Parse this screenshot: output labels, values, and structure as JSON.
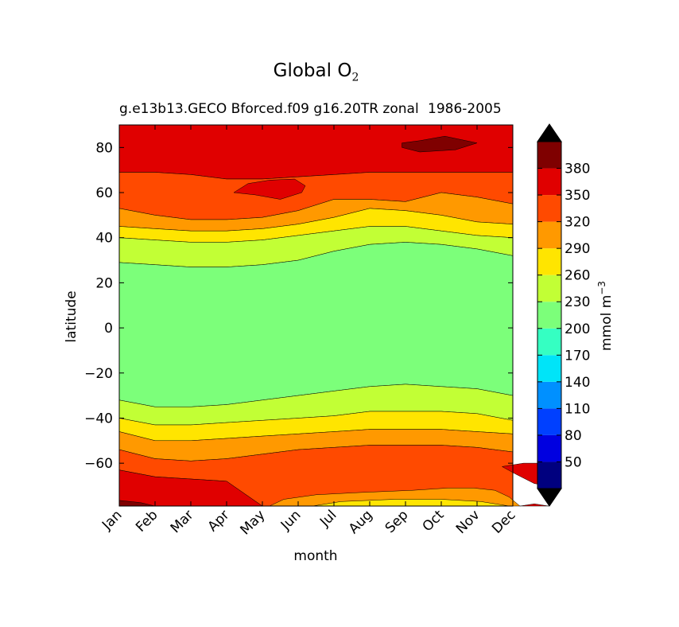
{
  "chart_data": {
    "type": "contourf",
    "title": "Global O",
    "title_subscript": "2",
    "subtitle": "g.e13b13.GECO Bforced.f09 g16.20TR zonal",
    "subtitle_years": "1986-2005",
    "xlabel": "month",
    "ylabel": "latitude",
    "x_categories": [
      "Jan",
      "Feb",
      "Mar",
      "Apr",
      "May",
      "Jun",
      "Jul",
      "Aug",
      "Sep",
      "Oct",
      "Nov",
      "Dec"
    ],
    "y_ticks": [
      80,
      60,
      40,
      20,
      0,
      -20,
      -40,
      -60
    ],
    "ylim": [
      -79,
      90
    ],
    "colorbar": {
      "label": "mmol m",
      "label_sup": "−3",
      "ticks": [
        50,
        80,
        110,
        140,
        170,
        200,
        230,
        260,
        290,
        320,
        350,
        380
      ],
      "levels": [
        20,
        50,
        80,
        110,
        140,
        170,
        200,
        230,
        260,
        290,
        320,
        350,
        380,
        410
      ],
      "colors": [
        "#00007f",
        "#0000e0",
        "#0040ff",
        "#0090ff",
        "#00e4f8",
        "#35ffc2",
        "#7cff7a",
        "#c2ff35",
        "#ffe500",
        "#ff9900",
        "#ff4a00",
        "#e00000",
        "#7f0000"
      ],
      "extend_min_color": "#000000",
      "extend_max_color": "#000000"
    },
    "bands": [
      {
        "level": "350-380",
        "upper": [
          90,
          90,
          90,
          90,
          90,
          90,
          90,
          90,
          90,
          90,
          90,
          90
        ],
        "lower": [
          69,
          69,
          68,
          66,
          66,
          67,
          68,
          69,
          69,
          69,
          69,
          69
        ],
        "color": "#e00000"
      },
      {
        "level": "320-350",
        "upper": [
          69,
          69,
          68,
          66,
          66,
          67,
          68,
          69,
          69,
          69,
          69,
          69
        ],
        "lower": [
          53,
          50,
          48,
          48,
          49,
          52,
          57,
          57,
          56,
          60,
          58,
          55
        ],
        "color": "#ff4a00"
      },
      {
        "level": "290-320",
        "upper": [
          53,
          50,
          48,
          48,
          49,
          52,
          57,
          57,
          56,
          60,
          58,
          55
        ],
        "lower": [
          45,
          44,
          43,
          43,
          44,
          46,
          49,
          53,
          52,
          50,
          47,
          46
        ],
        "color": "#ff9900"
      },
      {
        "level": "260-290",
        "upper": [
          45,
          44,
          43,
          43,
          44,
          46,
          49,
          53,
          52,
          50,
          47,
          46
        ],
        "lower": [
          40,
          39,
          38,
          38,
          39,
          41,
          43,
          45,
          45,
          43,
          41,
          40
        ],
        "color": "#ffe500"
      },
      {
        "level": "230-260",
        "upper": [
          40,
          39,
          38,
          38,
          39,
          41,
          43,
          45,
          45,
          43,
          41,
          40
        ],
        "lower": [
          29,
          28,
          27,
          27,
          28,
          30,
          34,
          37,
          38,
          37,
          35,
          32
        ],
        "color": "#c2ff35"
      },
      {
        "level": "200-230",
        "upper": [
          29,
          28,
          27,
          27,
          28,
          30,
          34,
          37,
          38,
          37,
          35,
          32
        ],
        "lower": [
          -32,
          -35,
          -35,
          -34,
          -32,
          -30,
          -28,
          -26,
          -25,
          -26,
          -27,
          -30
        ],
        "color": "#7cff7a"
      },
      {
        "level": "230-260",
        "upper": [
          -32,
          -35,
          -35,
          -34,
          -32,
          -30,
          -28,
          -26,
          -25,
          -26,
          -27,
          -30
        ],
        "lower": [
          -40,
          -43,
          -43,
          -42,
          -41,
          -40,
          -39,
          -37,
          -37,
          -37,
          -38,
          -41
        ],
        "color": "#c2ff35"
      },
      {
        "level": "260-290",
        "upper": [
          -40,
          -43,
          -43,
          -42,
          -41,
          -40,
          -39,
          -37,
          -37,
          -37,
          -38,
          -41
        ],
        "lower": [
          -46,
          -50,
          -50,
          -49,
          -48,
          -47,
          -46,
          -45,
          -45,
          -45,
          -46,
          -47
        ],
        "color": "#ffe500"
      },
      {
        "level": "290-320",
        "upper": [
          -46,
          -50,
          -50,
          -49,
          -48,
          -47,
          -46,
          -45,
          -45,
          -45,
          -46,
          -47
        ],
        "lower": [
          -54,
          -58,
          -59,
          -58,
          -56,
          -54,
          -53,
          -52,
          -52,
          -52,
          -53,
          -55
        ],
        "color": "#ff9900"
      },
      {
        "level": "320-350",
        "upper": [
          -54,
          -58,
          -59,
          -58,
          -56,
          -54,
          -53,
          -52,
          -52,
          -52,
          -53,
          -55
        ],
        "lower": [
          -63,
          -66,
          -67,
          -68,
          -79,
          -79,
          -79,
          -79,
          -79,
          -79,
          -79,
          -79
        ],
        "color": "#ff4a00"
      },
      {
        "level": "350-380",
        "upper": [
          -63,
          -66,
          -67,
          -68,
          -79,
          -79,
          -79,
          -79,
          -79,
          -79,
          -79,
          -79
        ],
        "lower": [
          -79,
          -79,
          -79,
          -79,
          -79,
          -79,
          -79,
          -79,
          -79,
          -79,
          -79,
          -79
        ],
        "color": "#e00000"
      }
    ],
    "patches": [
      {
        "level": "380-410",
        "points": [
          [
            7.9,
            82
          ],
          [
            8.4,
            83
          ],
          [
            9.1,
            85
          ],
          [
            10.0,
            82
          ],
          [
            9.4,
            79
          ],
          [
            8.4,
            78
          ],
          [
            7.9,
            80
          ]
        ],
        "color": "#7f0000"
      },
      {
        "level": "350-380",
        "points": [
          [
            3.2,
            60
          ],
          [
            3.6,
            64
          ],
          [
            4.2,
            65.5
          ],
          [
            4.9,
            66
          ],
          [
            5.2,
            63
          ],
          [
            5.1,
            60
          ],
          [
            4.5,
            57
          ],
          [
            3.8,
            59
          ]
        ],
        "color": "#e00000"
      },
      {
        "level": "290-320",
        "points": [
          [
            4.2,
            -79
          ],
          [
            4.6,
            -76
          ],
          [
            5.5,
            -74
          ],
          [
            6.7,
            -73
          ],
          [
            8.2,
            -72
          ],
          [
            9.2,
            -71
          ],
          [
            9.9,
            -71
          ],
          [
            10.5,
            -72
          ],
          [
            10.9,
            -75
          ],
          [
            11.2,
            -79
          ]
        ],
        "color": "#ff9900"
      },
      {
        "level": "260-290",
        "points": [
          [
            5.4,
            -79
          ],
          [
            6.2,
            -77
          ],
          [
            7.7,
            -76
          ],
          [
            9.0,
            -76
          ],
          [
            10.1,
            -77
          ],
          [
            10.9,
            -79
          ]
        ],
        "color": "#ffe500"
      },
      {
        "level": "350-380",
        "points": [
          [
            12.0,
            -60
          ],
          [
            11.3,
            -60
          ],
          [
            10.7,
            -61.5
          ],
          [
            11.1,
            -65
          ],
          [
            11.6,
            -69
          ],
          [
            12.0,
            -70
          ]
        ],
        "color": "#e00000"
      },
      {
        "level": "350-380",
        "points": [
          [
            12.0,
            -79
          ],
          [
            11.6,
            -78
          ],
          [
            11.2,
            -79
          ]
        ],
        "color": "#e00000"
      },
      {
        "level": "380-410",
        "points": [
          [
            0,
            -79
          ],
          [
            0,
            -76.5
          ],
          [
            0.6,
            -77.5
          ],
          [
            1.0,
            -79
          ]
        ],
        "color": "#7f0000"
      }
    ]
  }
}
